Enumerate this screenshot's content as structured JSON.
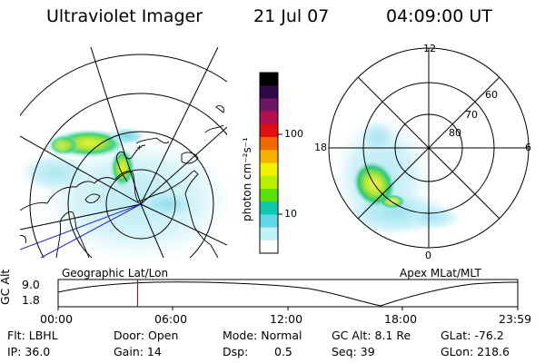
{
  "header": {
    "title": "Ultraviolet Imager",
    "date": "21 Jul 07",
    "time": "04:09:00 UT"
  },
  "geo_panel": {
    "caption": "Geographic Lat/Lon"
  },
  "mag_panel": {
    "caption": "Apex MLat/MLT",
    "mlt_labels": [
      "12",
      "18",
      "6",
      "0"
    ],
    "mlat_labels": [
      "60",
      "70",
      "80"
    ]
  },
  "colorbar": {
    "label": "photon cm⁻²s⁻¹",
    "ticks": [
      "100",
      "10"
    ],
    "colors": [
      "#000000",
      "#300848",
      "#701468",
      "#b01050",
      "#e01010",
      "#f06800",
      "#f8b000",
      "#f0f000",
      "#b8f000",
      "#58e010",
      "#10c8b0",
      "#60d8e8",
      "#c0f0f8",
      "#ffffff"
    ]
  },
  "altitude_strip": {
    "axis_label": "GC Alt",
    "y_ticks": [
      "9.0",
      "1.8"
    ],
    "x_ticks": [
      "00:00",
      "06:00",
      "12:00",
      "18:00",
      "23:59"
    ],
    "current_time_hours": 4.15
  },
  "footer": {
    "filter": "Flt: LBHL",
    "door": "Door: Open",
    "mode": "Mode: Normal",
    "gc_alt": "GC Alt: 8.1 Re",
    "glat": "GLat: -76.2",
    "ip": "IP: 36.0",
    "gain": "Gain: 14",
    "dsp_label": "Dsp:",
    "dsp_value": "0.5",
    "seq": "Seq: 39",
    "glon": "GLon: 218.6"
  },
  "colors": {
    "grid": "#000000",
    "blue_lines": "#2020c0",
    "marker": "#d00000"
  }
}
